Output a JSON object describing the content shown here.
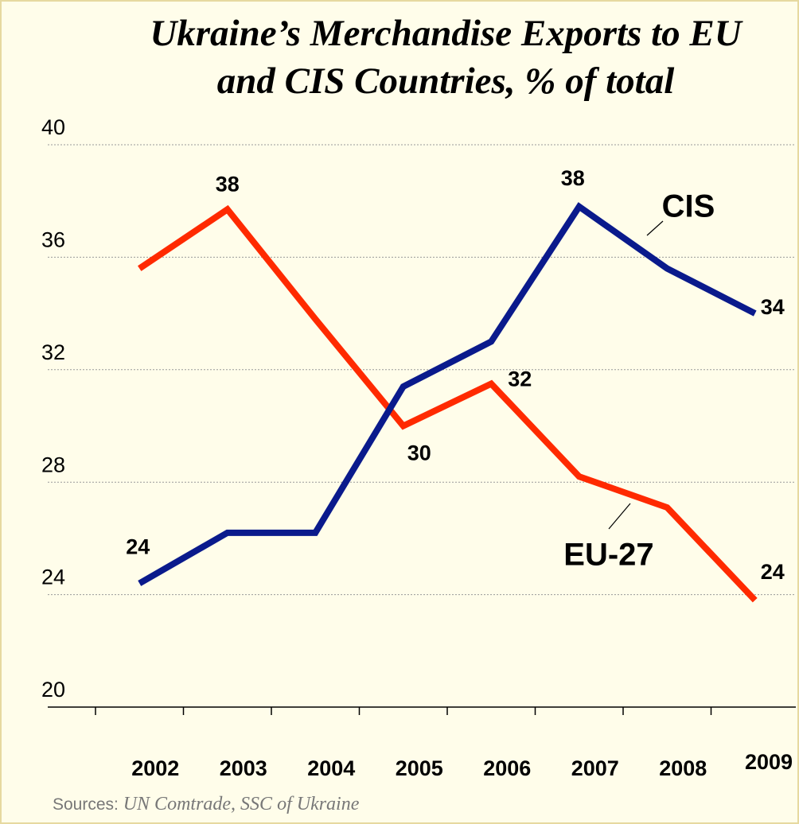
{
  "chart_data": {
    "type": "line",
    "title": [
      "Ukraine’s Merchandise Exports to EU",
      "and CIS Countries, % of total"
    ],
    "categories": [
      "2002",
      "2003",
      "2004",
      "2005",
      "2006",
      "2007",
      "2008",
      "2009"
    ],
    "series": [
      {
        "name": "EU-27",
        "color": "#ff2a00",
        "values": [
          35.6,
          37.7,
          33.8,
          30.0,
          31.5,
          28.2,
          27.1,
          23.8
        ],
        "value_labels": [
          null,
          "38",
          null,
          "30",
          "32",
          null,
          null,
          "24"
        ]
      },
      {
        "name": "CIS",
        "color": "#0a1a8c",
        "values": [
          24.4,
          26.2,
          26.2,
          31.4,
          33.0,
          37.8,
          35.6,
          34.0
        ],
        "value_labels": [
          "24",
          null,
          null,
          null,
          null,
          "38",
          null,
          "34"
        ]
      }
    ],
    "ylim": [
      20,
      40
    ],
    "yticks": [
      20,
      24,
      28,
      32,
      36,
      40
    ],
    "grid": true,
    "source_label": "Sources:",
    "source": "UN Comtrade, SSC of Ukraine"
  }
}
